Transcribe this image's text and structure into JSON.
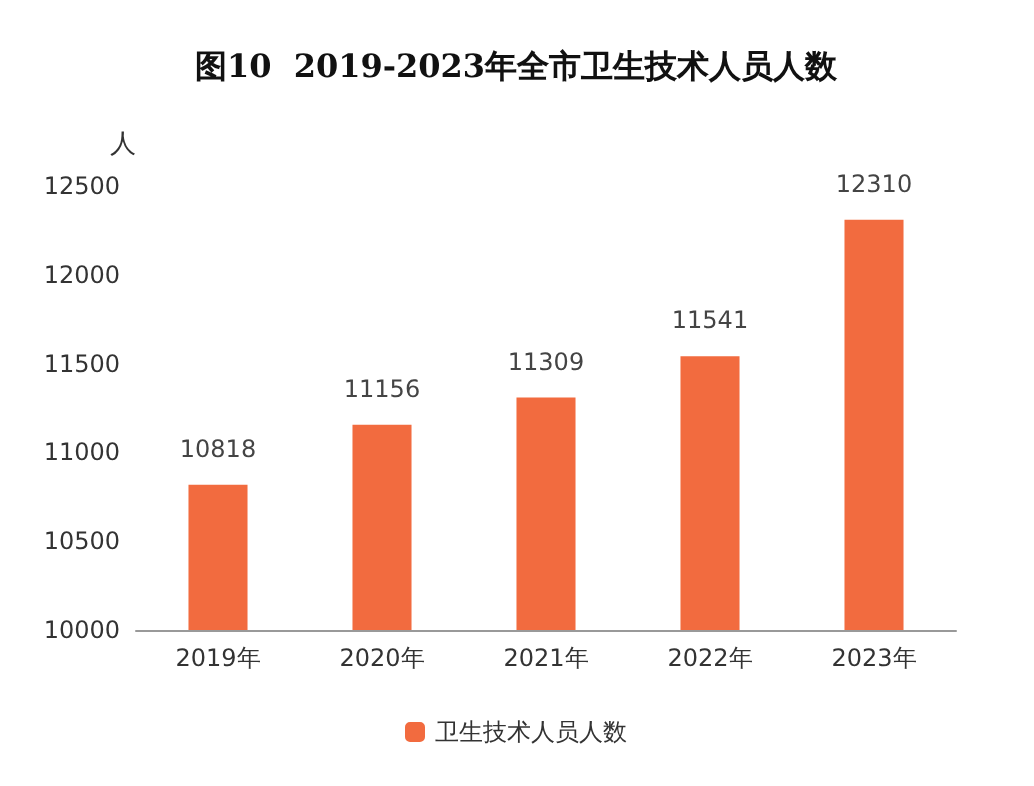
{
  "chart_data": {
    "type": "bar",
    "title": "图10  2019-2023年全市卫生技术人员人数",
    "ylabel": "人",
    "categories": [
      "2019年",
      "2020年",
      "2021年",
      "2022年",
      "2023年"
    ],
    "series": [
      {
        "name": "卫生技术人员人数",
        "color": "#f26b3f",
        "values": [
          10818,
          11156,
          11309,
          11541,
          12310
        ]
      }
    ],
    "ylim": [
      10000,
      12500
    ],
    "yticks": [
      10000,
      10500,
      11000,
      11500,
      12000,
      12500
    ],
    "grid": false,
    "legend": "bottom",
    "data_labels": true
  }
}
